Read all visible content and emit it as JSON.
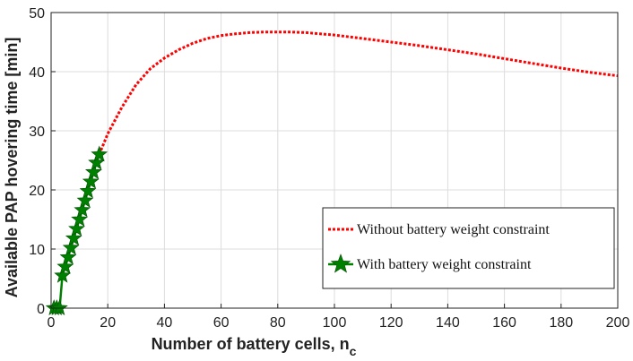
{
  "chart_data": {
    "type": "line",
    "xlabel": "Number of battery cells, n",
    "xlabel_sub": "c",
    "ylabel": "Available PAP hovering time [min]",
    "xlim": [
      0,
      200
    ],
    "ylim": [
      0,
      50
    ],
    "xticks": [
      0,
      20,
      40,
      60,
      80,
      100,
      120,
      140,
      160,
      180,
      200
    ],
    "yticks": [
      0,
      10,
      20,
      30,
      40,
      50
    ],
    "grid": true,
    "legend_position": "center-right",
    "series": [
      {
        "name": "Without battery weight constraint",
        "color": "#ff0000",
        "style": "dotted",
        "x": [
          17,
          20,
          25,
          30,
          35,
          40,
          45,
          50,
          55,
          60,
          65,
          70,
          75,
          80,
          85,
          90,
          95,
          100,
          110,
          120,
          130,
          140,
          150,
          160,
          170,
          180,
          190,
          200
        ],
        "y": [
          26.0,
          29.5,
          34.0,
          37.8,
          40.5,
          42.3,
          43.7,
          44.8,
          45.6,
          46.1,
          46.4,
          46.6,
          46.7,
          46.7,
          46.7,
          46.6,
          46.4,
          46.2,
          45.6,
          45.0,
          44.4,
          43.7,
          43.0,
          42.2,
          41.4,
          40.6,
          39.9,
          39.3
        ]
      },
      {
        "name": "With battery weight constraint",
        "color": "#008000",
        "style": "solid-star",
        "x": [
          1,
          2,
          3,
          4,
          5,
          6,
          7,
          8,
          9,
          10,
          11,
          12,
          13,
          14,
          15,
          16,
          17
        ],
        "y": [
          0,
          0,
          0,
          5.5,
          7.0,
          8.6,
          10.2,
          11.8,
          13.4,
          15.0,
          16.6,
          18.2,
          19.8,
          21.4,
          23.0,
          24.6,
          26.0
        ]
      }
    ]
  }
}
